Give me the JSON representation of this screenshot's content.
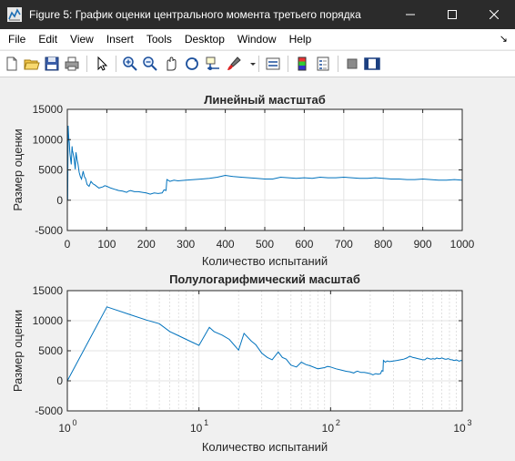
{
  "window": {
    "title": "Figure 5: График оценки центрального момента третьего порядка",
    "controls": [
      "minimize-icon",
      "maximize-icon",
      "close-icon"
    ]
  },
  "menu": [
    "File",
    "Edit",
    "View",
    "Insert",
    "Tools",
    "Desktop",
    "Window",
    "Help"
  ],
  "menu_overflow_glyph": "↘",
  "toolbar": [
    "new-figure-icon",
    "open-icon",
    "save-icon",
    "print-icon",
    "pointer-icon",
    "zoom-in-icon",
    "zoom-out-icon",
    "pan-icon",
    "rotate-3d-icon",
    "data-cursor-icon",
    "brush-icon",
    "link-plot-icon",
    "insert-colorbar-icon",
    "insert-legend-icon",
    "hide-plot-tools-icon",
    "show-plot-tools-icon"
  ],
  "colors": {
    "line": "#0072bd",
    "axes_bg": "#ffffff",
    "figure_bg": "#f0f0f0",
    "titlebar": "#2b2b2b"
  },
  "chart_data": [
    {
      "type": "line",
      "title": "Линейный мастштаб",
      "xlabel": "Количество испытаний",
      "ylabel": "Размер оценки",
      "xlim": [
        0,
        1000
      ],
      "ylim": [
        -5000,
        15000
      ],
      "x_scale": "linear",
      "grid": true,
      "xticks": [
        0,
        100,
        200,
        300,
        400,
        500,
        600,
        700,
        800,
        900,
        1000
      ],
      "xtick_labels": [
        "0",
        "100",
        "200",
        "300",
        "400",
        "500",
        "600",
        "700",
        "800",
        "900",
        "1000"
      ],
      "yticks": [
        -5000,
        0,
        5000,
        10000,
        15000
      ],
      "ytick_labels": [
        "-5000",
        "0",
        "5000",
        "10000",
        "15000"
      ],
      "x": [
        1,
        2,
        3,
        4,
        5,
        6,
        7,
        8,
        10,
        12,
        13,
        15,
        17,
        20,
        22,
        25,
        27,
        30,
        33,
        36,
        40,
        43,
        46,
        50,
        55,
        60,
        65,
        70,
        80,
        90,
        95,
        100,
        110,
        120,
        130,
        140,
        150,
        155,
        160,
        170,
        180,
        190,
        200,
        210,
        220,
        230,
        240,
        245,
        250,
        252,
        255,
        260,
        270,
        280,
        300,
        320,
        340,
        360,
        380,
        400,
        420,
        440,
        460,
        480,
        500,
        520,
        540,
        560,
        580,
        600,
        620,
        640,
        660,
        680,
        700,
        720,
        740,
        760,
        780,
        800,
        820,
        840,
        860,
        880,
        900,
        920,
        940,
        960,
        980,
        1000
      ],
      "y": [
        0,
        12300,
        11000,
        10100,
        9500,
        8200,
        7500,
        6900,
        5900,
        8900,
        8200,
        7600,
        6900,
        5100,
        7900,
        6600,
        6000,
        4600,
        3900,
        3500,
        4800,
        3900,
        3600,
        2600,
        2300,
        3100,
        2700,
        2500,
        2000,
        2200,
        2400,
        2300,
        2000,
        1800,
        1600,
        1500,
        1300,
        1500,
        1600,
        1400,
        1400,
        1300,
        1200,
        1000,
        1200,
        1100,
        1200,
        1700,
        1600,
        3400,
        3300,
        3100,
        3300,
        3200,
        3300,
        3400,
        3500,
        3600,
        3800,
        4100,
        3900,
        3800,
        3700,
        3600,
        3500,
        3500,
        3800,
        3700,
        3600,
        3700,
        3600,
        3800,
        3700,
        3700,
        3800,
        3700,
        3600,
        3600,
        3700,
        3600,
        3500,
        3500,
        3400,
        3400,
        3500,
        3400,
        3300,
        3300,
        3400,
        3300
      ]
    },
    {
      "type": "line",
      "title": "Полулогарифмический масштаб",
      "xlabel": "Количество испытаний",
      "ylabel": "Размер оценки",
      "xlim": [
        1,
        1000
      ],
      "ylim": [
        -5000,
        15000
      ],
      "x_scale": "log",
      "grid": true,
      "xticks": [
        1,
        10,
        100,
        1000
      ],
      "xtick_labels": [
        {
          "base": "10",
          "exp": "0"
        },
        {
          "base": "10",
          "exp": "1"
        },
        {
          "base": "10",
          "exp": "2"
        },
        {
          "base": "10",
          "exp": "3"
        }
      ],
      "yticks": [
        -5000,
        0,
        5000,
        10000,
        15000
      ],
      "ytick_labels": [
        "-5000",
        "0",
        "5000",
        "10000",
        "15000"
      ],
      "series_ref": "same data as the linear-scale plot"
    }
  ]
}
